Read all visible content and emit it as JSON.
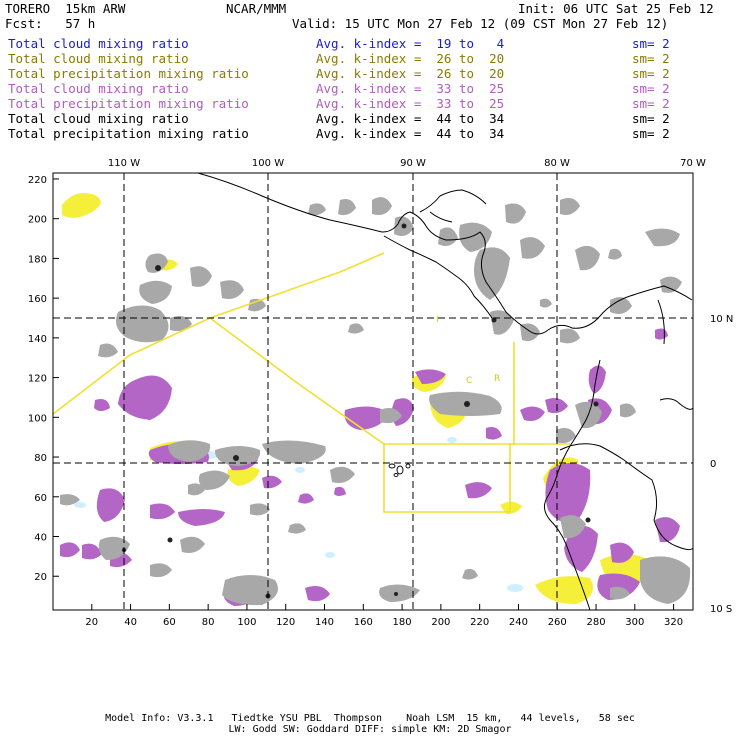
{
  "header": {
    "model": "TORERO  15km ARW",
    "center": "NCAR/MMM",
    "init": "Init: 06 UTC Sat 25 Feb 12",
    "fcst": "Fcst:   57 h",
    "valid": "Valid: 15 UTC Mon 27 Feb 12 (09 CST Mon 27 Feb 12)"
  },
  "legend": [
    {
      "field": "Total cloud mixing ratio",
      "kindex": "Avg. k-index =  19 to   4",
      "sm": "sm= 2",
      "color": "#1b1bd0"
    },
    {
      "field": "Total cloud mixing ratio",
      "kindex": "Avg. k-index =  26 to  20",
      "sm": "sm= 2",
      "color": "#8c7a00"
    },
    {
      "field": "Total precipitation mixing ratio",
      "kindex": "Avg. k-index =  26 to  20",
      "sm": "sm= 2",
      "color": "#8c7a00"
    },
    {
      "field": "Total cloud mixing ratio",
      "kindex": "Avg. k-index =  33 to  25",
      "sm": "sm= 2",
      "color": "#b05cc0"
    },
    {
      "field": "Total precipitation mixing ratio",
      "kindex": "Avg. k-index =  33 to  25",
      "sm": "sm= 2",
      "color": "#b05cc0"
    },
    {
      "field": "Total cloud mixing ratio",
      "kindex": "Avg. k-index =  44 to  34",
      "sm": "sm= 2",
      "color": "#000000"
    },
    {
      "field": "Total precipitation mixing ratio",
      "kindex": "Avg. k-index =  44 to  34",
      "sm": "sm= 2",
      "color": "#000000"
    }
  ],
  "map": {
    "lon_labels": [
      "110 W",
      "100 W",
      "90 W",
      "80 W",
      "70 W"
    ],
    "lat_labels": [
      "10 N",
      "0",
      "10 S"
    ],
    "x_ticks": [
      "20",
      "40",
      "60",
      "80",
      "100",
      "120",
      "140",
      "160",
      "180",
      "200",
      "220",
      "240",
      "260",
      "280",
      "300",
      "320"
    ],
    "y_ticks": [
      "220",
      "200",
      "180",
      "160",
      "140",
      "120",
      "100",
      "80",
      "60",
      "40",
      "20"
    ],
    "grid_x_range": [
      0,
      330
    ],
    "grid_y_range": [
      3,
      223
    ],
    "annotations": [
      "I",
      "C",
      "R"
    ],
    "colors": {
      "cloud_gray": "#a8a8a8",
      "dark_core": "#222222",
      "purple": "#b366c6",
      "yellow": "#f5ef3a",
      "light_blue": "#cfefff",
      "boundary": "#f0e030"
    }
  },
  "footer": {
    "line1": "Model Info: V3.3.1   Tiedtke YSU PBL  Thompson    Noah LSM  15 km,   44 levels,   58 sec",
    "line2": "LW: Godd SW: Goddard DIFF: simple KM: 2D Smagor"
  }
}
